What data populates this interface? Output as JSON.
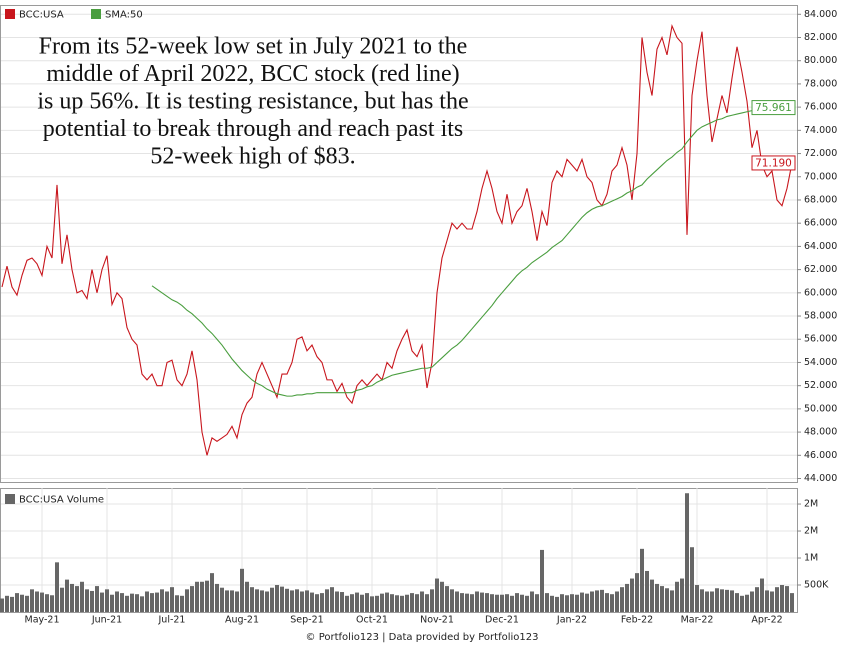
{
  "chart_data": [
    {
      "type": "line",
      "annotation": [
        "From its 52-week low set in July 2021 to the",
        "middle of April 2022, BCC stock (red line)",
        "is up 56%. It is testing resistance, but has the",
        "potential to break through and reach past its",
        "52-week high of $83."
      ],
      "series": [
        {
          "name": "BCC:USA",
          "color": "#c8161d",
          "values": [
            60.5,
            62.3,
            60.5,
            59.8,
            61.5,
            62.8,
            63,
            62.5,
            61.5,
            64,
            63,
            69.3,
            62.5,
            65,
            62,
            60,
            60.2,
            59.5,
            62,
            60,
            62,
            63.2,
            59,
            60,
            59.5,
            57,
            56,
            55.5,
            53,
            52.5,
            53,
            52,
            52,
            54,
            54.2,
            52.5,
            52,
            53,
            55,
            52.5,
            48,
            46,
            47.5,
            47.2,
            47.5,
            47.8,
            48.5,
            47.5,
            49.5,
            50.5,
            51,
            53,
            54,
            53,
            52,
            51,
            53,
            53,
            54,
            56,
            56.2,
            55,
            55.5,
            54.5,
            54,
            52.5,
            52.5,
            51.5,
            52.2,
            51,
            50.5,
            52,
            52.5,
            52,
            52.5,
            53,
            52.5,
            54,
            53.5,
            55,
            56,
            56.8,
            55,
            54.5,
            55.5,
            51.8,
            54,
            60,
            63,
            64.5,
            66,
            65.5,
            66,
            65.5,
            65.5,
            67,
            69,
            70.5,
            69,
            67,
            66,
            68.5,
            66,
            67,
            67.5,
            69,
            67,
            64.5,
            67,
            65.8,
            69.5,
            70.5,
            70,
            71.5,
            71,
            70.5,
            71.5,
            70,
            69.5,
            68,
            67.5,
            68.5,
            70.5,
            71,
            72.5,
            71,
            68,
            72,
            82,
            79,
            77,
            81,
            82,
            80.5,
            83,
            82,
            81.5,
            65,
            77,
            80,
            82.5,
            77,
            73,
            75,
            77,
            75.5,
            78.5,
            81.2,
            79,
            76.5,
            72.5,
            74,
            71,
            70,
            70.5,
            68,
            67.5,
            69,
            71.19
          ],
          "value_labels": [
            null,
            null,
            null,
            null,
            null,
            null,
            null,
            null,
            null,
            null,
            null,
            null,
            null,
            null,
            null,
            null,
            null,
            null,
            null,
            null,
            null,
            null,
            null,
            null,
            null,
            null,
            null,
            null,
            null,
            null,
            null,
            null,
            null,
            null,
            null,
            null,
            null,
            null,
            null,
            null,
            null,
            null,
            null,
            null,
            null,
            null,
            null,
            null,
            null,
            null,
            null,
            null,
            null,
            null,
            null,
            null,
            null,
            null,
            null,
            null,
            null,
            null,
            null,
            null,
            null,
            null,
            null,
            null,
            null,
            null,
            null,
            null,
            null,
            null,
            null,
            null,
            null,
            null,
            null,
            null,
            null,
            null,
            null,
            null,
            null,
            null,
            null,
            null,
            null,
            null,
            null,
            null,
            null,
            null,
            null,
            null,
            null,
            null,
            null,
            null,
            null,
            null,
            null,
            null,
            null,
            null,
            null,
            null,
            null,
            null,
            null,
            null,
            null,
            null,
            null,
            null,
            null,
            null,
            null,
            null,
            null,
            null,
            null,
            null,
            null,
            null,
            null,
            null,
            null,
            null,
            null,
            null,
            null,
            null,
            null,
            null,
            null,
            null,
            null,
            null,
            null,
            null,
            null,
            null,
            null,
            null,
            null,
            null,
            null,
            null,
            null,
            null,
            null,
            null,
            null,
            null,
            null,
            null,
            "71.190"
          ]
        },
        {
          "name": "SMA:50",
          "color": "#4a9e3f",
          "values": [
            null,
            null,
            null,
            null,
            null,
            null,
            null,
            null,
            null,
            null,
            null,
            null,
            null,
            null,
            null,
            null,
            null,
            null,
            null,
            null,
            null,
            null,
            null,
            null,
            null,
            null,
            null,
            null,
            null,
            null,
            60.6,
            60.3,
            60.0,
            59.7,
            59.4,
            59.2,
            58.9,
            58.5,
            58.2,
            57.8,
            57.4,
            56.9,
            56.5,
            56.0,
            55.5,
            54.9,
            54.3,
            53.8,
            53.3,
            52.9,
            52.5,
            52.2,
            52.0,
            51.7,
            51.5,
            51.3,
            51.2,
            51.1,
            51.1,
            51.2,
            51.2,
            51.3,
            51.3,
            51.4,
            51.4,
            51.4,
            51.4,
            51.4,
            51.4,
            51.4,
            51.4,
            51.6,
            51.7,
            51.9,
            52.0,
            52.3,
            52.5,
            52.7,
            52.9,
            53.0,
            53.1,
            53.2,
            53.3,
            53.4,
            53.5,
            53.5,
            53.6,
            54.0,
            54.4,
            54.8,
            55.2,
            55.5,
            55.9,
            56.4,
            56.9,
            57.4,
            57.9,
            58.4,
            58.9,
            59.5,
            60.0,
            60.5,
            61.0,
            61.5,
            61.9,
            62.2,
            62.6,
            62.9,
            63.2,
            63.5,
            63.9,
            64.2,
            64.5,
            65.0,
            65.5,
            66.0,
            66.5,
            66.9,
            67.2,
            67.4,
            67.5,
            67.7,
            67.9,
            68.1,
            68.3,
            68.6,
            68.8,
            69.1,
            69.3,
            69.8,
            70.2,
            70.6,
            71.0,
            71.4,
            71.7,
            72.1,
            72.4,
            73.0,
            73.5,
            74.0,
            74.3,
            74.5,
            74.7,
            74.9,
            75.0,
            75.2,
            75.3,
            75.4,
            75.5,
            75.6,
            75.7,
            75.8,
            75.9,
            76.0,
            76.1,
            76.2,
            76.2,
            76.1,
            75.961
          ]
        }
      ],
      "ylim": [
        43.7,
        84.8
      ],
      "yticks": [
        {
          "value": 44,
          "label": "44.000"
        },
        {
          "value": 46,
          "label": "46.000"
        },
        {
          "value": 48,
          "label": "48.000"
        },
        {
          "value": 50,
          "label": "50.000"
        },
        {
          "value": 52,
          "label": "52.000"
        },
        {
          "value": 54,
          "label": "54.000"
        },
        {
          "value": 56,
          "label": "56.000"
        },
        {
          "value": 58,
          "label": "58.000"
        },
        {
          "value": 60,
          "label": "60.000"
        },
        {
          "value": 62,
          "label": "62.000"
        },
        {
          "value": 64,
          "label": "64.000"
        },
        {
          "value": 66,
          "label": "66.000"
        },
        {
          "value": 68,
          "label": "68.000"
        },
        {
          "value": 70,
          "label": "70.000"
        },
        {
          "value": 72,
          "label": "72.000"
        },
        {
          "value": 74,
          "label": "74.000"
        },
        {
          "value": 76,
          "label": "76.000"
        },
        {
          "value": 78,
          "label": "78.000"
        },
        {
          "value": 80,
          "label": "80.000"
        },
        {
          "value": 82,
          "label": "82.000"
        },
        {
          "value": 84,
          "label": "84.000"
        }
      ],
      "grid": true,
      "legend": "top-left"
    },
    {
      "type": "bar",
      "categories": [
        null,
        null,
        null,
        null,
        null,
        null,
        null,
        null,
        "May-21",
        null,
        null,
        null,
        null,
        null,
        null,
        null,
        null,
        null,
        null,
        null,
        null,
        "Jun-21",
        null,
        null,
        null,
        null,
        null,
        null,
        null,
        null,
        null,
        null,
        null,
        null,
        "Jul-21",
        null,
        null,
        null,
        null,
        null,
        null,
        null,
        null,
        null,
        null,
        null,
        null,
        null,
        "Aug-21",
        null,
        null,
        null,
        null,
        null,
        null,
        null,
        null,
        null,
        null,
        null,
        null,
        "Sep-21",
        null,
        null,
        null,
        null,
        null,
        null,
        null,
        null,
        null,
        null,
        null,
        null,
        "Oct-21",
        null,
        null,
        null,
        null,
        null,
        null,
        null,
        null,
        null,
        null,
        null,
        null,
        "Nov-21",
        null,
        null,
        null,
        null,
        null,
        null,
        null,
        null,
        null,
        null,
        null,
        null,
        "Dec-21",
        null,
        null,
        null,
        null,
        null,
        null,
        null,
        null,
        null,
        null,
        null,
        null,
        null,
        "Jan-22",
        null,
        null,
        null,
        null,
        null,
        null,
        null,
        null,
        null,
        null,
        null,
        null,
        "Feb-22",
        null,
        null,
        null,
        null,
        null,
        null,
        null,
        null,
        null,
        null,
        null,
        "Mar-22",
        null,
        null,
        null,
        null,
        null,
        null,
        null,
        null,
        null,
        null,
        null,
        null,
        null,
        "Apr-22",
        null,
        null,
        null,
        null,
        null
      ],
      "series": [
        {
          "name": "BCC:USA Volume",
          "color": "#666666",
          "values": [
            250000,
            300000,
            280000,
            350000,
            320000,
            300000,
            420000,
            380000,
            360000,
            330000,
            310000,
            920000,
            450000,
            600000,
            520000,
            480000,
            560000,
            420000,
            390000,
            480000,
            360000,
            420000,
            320000,
            380000,
            350000,
            300000,
            340000,
            330000,
            290000,
            380000,
            350000,
            360000,
            420000,
            380000,
            460000,
            310000,
            300000,
            420000,
            480000,
            560000,
            560000,
            580000,
            720000,
            520000,
            450000,
            400000,
            400000,
            380000,
            800000,
            560000,
            460000,
            420000,
            400000,
            380000,
            450000,
            500000,
            470000,
            430000,
            400000,
            420000,
            380000,
            400000,
            360000,
            330000,
            350000,
            420000,
            460000,
            380000,
            370000,
            300000,
            330000,
            360000,
            320000,
            350000,
            290000,
            300000,
            340000,
            360000,
            330000,
            310000,
            300000,
            320000,
            350000,
            330000,
            380000,
            330000,
            420000,
            620000,
            560000,
            480000,
            420000,
            380000,
            350000,
            340000,
            330000,
            380000,
            360000,
            350000,
            330000,
            320000,
            320000,
            330000,
            300000,
            350000,
            320000,
            300000,
            380000,
            330000,
            1150000,
            350000,
            300000,
            280000,
            330000,
            310000,
            330000,
            320000,
            360000,
            340000,
            380000,
            400000,
            410000,
            350000,
            330000,
            380000,
            460000,
            520000,
            620000,
            720000,
            1170000,
            760000,
            600000,
            520000,
            480000,
            440000,
            400000,
            560000,
            620000,
            2200000,
            1200000,
            500000,
            420000,
            380000,
            380000,
            440000,
            420000,
            410000,
            400000,
            350000,
            300000,
            320000,
            380000,
            460000,
            620000,
            400000,
            380000,
            460000,
            500000,
            480000,
            350000
          ]
        }
      ],
      "ylim": [
        0,
        2260000
      ],
      "yticks": [
        {
          "value": 500000,
          "label": "500K"
        },
        {
          "value": 1000000,
          "label": "1M"
        },
        {
          "value": 1500000,
          "label": "2M"
        },
        {
          "value": 2000000,
          "label": "2M"
        }
      ],
      "grid": true
    }
  ],
  "source": "© Portfolio123 | Data provided by Portfolio123"
}
